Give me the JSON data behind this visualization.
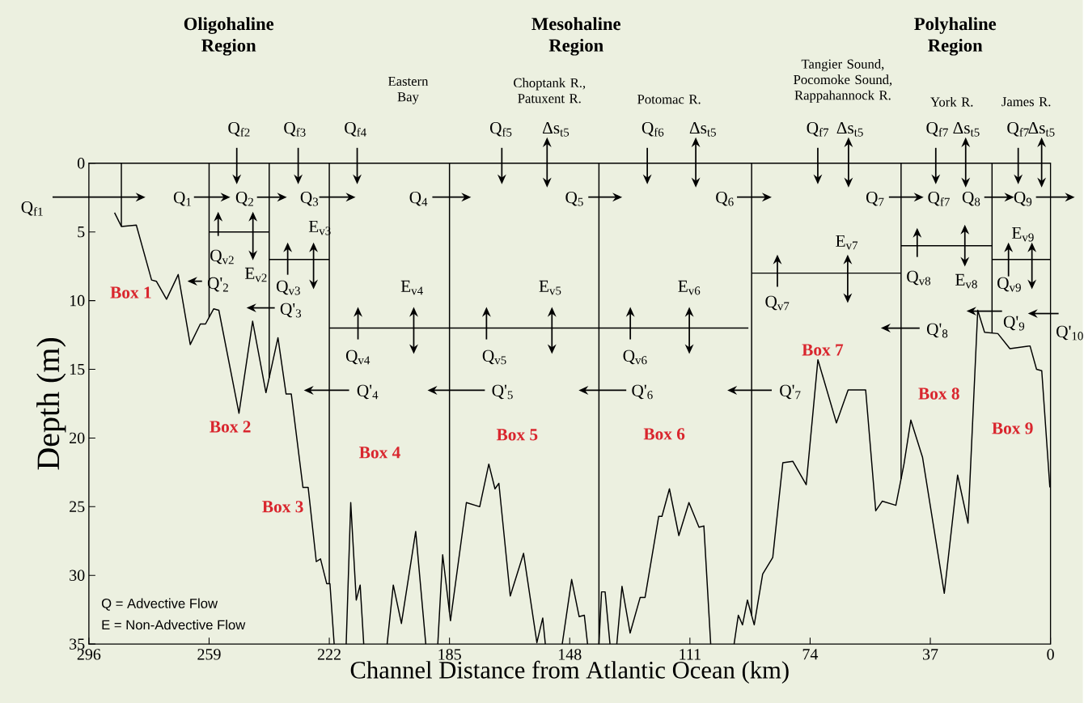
{
  "chart_data": {
    "type": "line",
    "xlabel": "Channel Distance from Atlantic Ocean (km)",
    "ylabel": "Depth (m)",
    "xlim": [
      296,
      0
    ],
    "ylim": [
      35,
      0
    ],
    "xticks": [
      296,
      259,
      222,
      185,
      148,
      111,
      74,
      37,
      0
    ],
    "yticks": [
      0,
      5,
      10,
      15,
      20,
      25,
      30,
      35
    ],
    "grid": false,
    "series": [
      {
        "color": "#000000",
        "x": [
          288.1,
          286,
          281.4,
          276.7,
          275.2,
          272.1,
          268.5,
          264.8,
          261.7,
          260.1,
          257.6,
          256,
          249.8,
          245.6,
          241.5,
          237.8,
          235.3,
          233.7,
          230.1,
          228.5,
          226,
          224.7,
          222.8,
          221.8,
          220.5
        ],
        "values": [
          3.6,
          4.6,
          4.5,
          8.5,
          8.6,
          9.9,
          8.1,
          13.2,
          11.7,
          11.7,
          10.6,
          10.7,
          18.2,
          11.5,
          16.7,
          12.7,
          16.8,
          16.8,
          23.6,
          23.6,
          29,
          28.8,
          30.6,
          30.6,
          35
        ]
      },
      {
        "color": "#000000",
        "x": [
          216.8,
          215.4,
          213.7,
          212.5,
          211.4
        ],
        "values": [
          35,
          24.7,
          31.8,
          30.7,
          35
        ]
      },
      {
        "color": "#000000",
        "x": [
          204.2,
          202.3,
          199.8,
          195.4,
          192.3
        ],
        "values": [
          35,
          30.7,
          33.5,
          26.8,
          35
        ]
      },
      {
        "color": "#000000",
        "x": [
          188.6,
          187.1,
          184.7,
          179.8,
          175.7,
          172.9,
          171,
          169.8,
          166.3,
          162.2,
          158.1,
          156.3,
          155.5
        ],
        "values": [
          35,
          28.5,
          33.3,
          24.7,
          25,
          21.9,
          23.7,
          23.3,
          31.5,
          28.4,
          34.9,
          33.1,
          35
        ]
      },
      {
        "color": "#000000",
        "x": [
          150.3,
          147.4,
          145.1,
          143.5,
          142.5
        ],
        "values": [
          35,
          30.3,
          33,
          32.9,
          35
        ]
      },
      {
        "color": "#000000",
        "x": [
          139,
          138.2,
          137.1,
          135.6
        ],
        "values": [
          35,
          31.2,
          31.2,
          35
        ]
      },
      {
        "color": "#000000",
        "x": [
          133.5,
          131.9,
          129.4,
          126.3,
          124.8,
          120.6,
          119.6,
          117.3,
          114.4,
          111.3,
          108.2,
          106.7,
          104.6
        ],
        "values": [
          35,
          30.8,
          34.2,
          31.6,
          31.6,
          25.7,
          25.7,
          23.7,
          27.1,
          24.7,
          26.5,
          26.4,
          35
        ]
      },
      {
        "color": "#000000",
        "x": [
          97.4,
          96.1,
          94.8,
          93.3,
          91.2,
          88.6,
          85.5,
          82.4,
          79.3,
          75.2,
          71.6,
          65.9,
          62.3,
          56.9,
          53.8,
          51.8,
          47.6,
          45.1,
          43,
          39.4,
          32.7,
          28.6,
          25.4,
          22.4,
          20.3,
          16.2,
          12.5,
          6.3,
          4.3,
          2.7,
          0.2
        ],
        "values": [
          35,
          32.9,
          33.6,
          31.8,
          33.6,
          29.9,
          28.7,
          21.8,
          21.7,
          23.4,
          14.3,
          18.9,
          16.5,
          16.5,
          25.3,
          24.6,
          24.9,
          21.9,
          18.7,
          21.4,
          31.3,
          22.7,
          26.2,
          10.7,
          12.3,
          12.4,
          13.5,
          13.3,
          15,
          15.1,
          23.6
        ]
      },
      {
        "color": "#000000",
        "x": [
          259,
          240.5
        ],
        "values": [
          5,
          5
        ]
      },
      {
        "color": "#000000",
        "x": [
          240.5,
          222
        ],
        "values": [
          7,
          7
        ]
      },
      {
        "color": "#000000",
        "x": [
          222,
          93
        ],
        "values": [
          12,
          12
        ]
      },
      {
        "color": "#000000",
        "x": [
          92,
          46
        ],
        "values": [
          8,
          8
        ]
      },
      {
        "color": "#000000",
        "x": [
          46,
          18
        ],
        "values": [
          6,
          6
        ]
      },
      {
        "color": "#000000",
        "x": [
          18,
          0
        ],
        "values": [
          7,
          7
        ]
      }
    ],
    "ref_lines": [
      {
        "axis": "x",
        "value": 286
      },
      {
        "axis": "x",
        "value": 259
      },
      {
        "axis": "x",
        "value": 240.5
      },
      {
        "axis": "x",
        "value": 222
      },
      {
        "axis": "x",
        "value": 185
      },
      {
        "axis": "x",
        "value": 139
      },
      {
        "axis": "x",
        "value": 92
      },
      {
        "axis": "x",
        "value": 46
      },
      {
        "axis": "x",
        "value": 18
      }
    ],
    "annotations": [
      "Box 1",
      "Box 2",
      "Box 3",
      "Box 4",
      "Box 5",
      "Box 6",
      "Box 7",
      "Box 8",
      "Box 9",
      "Q$_{1}$",
      "Q$_{2}$",
      "Q$_{3}$",
      "Q$_{4}$",
      "Q$_{5}$",
      "Q$_{6}$",
      "Q$_{7}$",
      "Q$_{f7}$",
      "Q$_{8}$",
      "Q$_{9}$",
      "Q$_{v2}$",
      "E$_{v2}$",
      "Q'$_{2}$",
      "Q$_{v3}$",
      "E$_{v3}$",
      "Q'$_{3}$",
      "E$_{v4}$",
      "Q$_{v4}$",
      "Q'$_{4}$",
      "E$_{v5}$",
      "Q$_{v5}$",
      "Q'$_{5}$",
      "E$_{v6}$",
      "Q$_{v6}$",
      "Q'$_{6}$",
      "E$_{v7}$",
      "Q$_{v7}$",
      "Q'$_{7}$",
      "Q$_{v8}$",
      "E$_{v8}$",
      "Q'$_{8}$",
      "E$_{v9}$",
      "Q$_{v9}$",
      "Q'$_{9}$",
      "Q = Advective Flow",
      "E = Non-Advective Flow",
      "Oligohaline Region",
      "Mesohaline Region",
      "Polyhaline Region",
      "Eastern Bay",
      "Choptank R., Patuxent R.",
      "Potomac R.",
      "Tangier Sound, Pocomoke Sound, Rappahannock R.",
      "York R.",
      "James R.",
      "Q$_{f1}$",
      "Q$_{f2}$",
      "Q$_{f3}$",
      "Q$_{f4}$",
      "Q$_{f5}$",
      "Δs$_{t5}$",
      "Q$_{f6}$",
      "Δs$_{t5}$",
      "Q$_{f7}$",
      "Δs$_{t5}$",
      "Q$_{f7}$",
      "Δs$_{t5}$",
      "Q$_{f7}$",
      "Δs$_{t5}$",
      "Q'$_{10}$"
    ]
  }
}
